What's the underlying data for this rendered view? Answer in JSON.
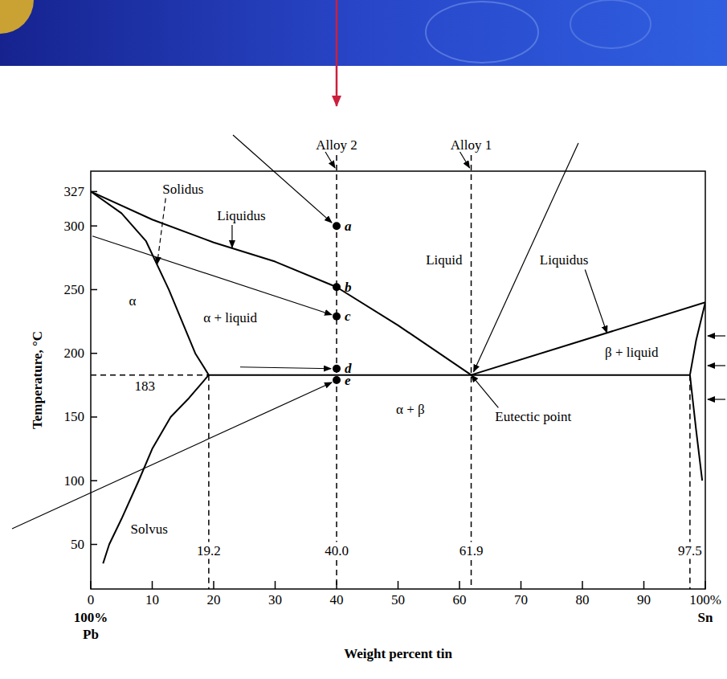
{
  "chart_data": {
    "type": "phase_diagram",
    "x_label": "Weight percent tin",
    "y_label": "Temperature, °C",
    "xlim": [
      0,
      100
    ],
    "ylim": [
      15,
      343
    ],
    "xticks": [
      0,
      10,
      20,
      30,
      40,
      50,
      60,
      70,
      80,
      90,
      {
        "value": 100,
        "label": "100%"
      }
    ],
    "yticks": [
      50,
      100,
      150,
      200,
      250,
      300,
      327
    ],
    "x_min_labels": [
      "100%",
      "Pb"
    ],
    "x_max_labels": [
      "Sn"
    ],
    "series": [
      {
        "x": [
          0,
          10,
          20,
          30,
          40,
          50,
          61.9
        ],
        "values": [
          327,
          305,
          287,
          272,
          252,
          222,
          183
        ],
        "color": "#000000",
        "line_style": "solid"
      },
      {
        "x": [
          0,
          5,
          9,
          12.7,
          17,
          19.2
        ],
        "values": [
          327,
          310,
          288,
          250,
          200,
          183
        ],
        "color": "#000000",
        "line_style": "solid"
      },
      {
        "x": [
          19.2,
          16,
          13,
          10,
          7.8,
          5,
          3,
          2
        ],
        "values": [
          183,
          165,
          150,
          125,
          100,
          70,
          50,
          35
        ],
        "color": "#000000",
        "line_style": "solid"
      },
      {
        "x": [
          61.9,
          100
        ],
        "values": [
          183,
          240
        ],
        "color": "#000000",
        "line_style": "solid"
      },
      {
        "x": [
          100,
          98.5,
          97.5
        ],
        "values": [
          240,
          210,
          183
        ],
        "color": "#000000",
        "line_style": "solid"
      },
      {
        "x": [
          97.5,
          98.5,
          99.5
        ],
        "values": [
          183,
          140,
          100
        ],
        "color": "#000000",
        "line_style": "solid"
      },
      {
        "x": [
          19.2,
          97.5
        ],
        "values": [
          183,
          183
        ],
        "color": "#000000",
        "line_style": "solid"
      },
      {
        "x": [
          0,
          19.2
        ],
        "values": [
          183,
          183
        ],
        "color": "#000000",
        "line_style": "dashed"
      }
    ],
    "reference_lines": [
      {
        "x": 19.2,
        "label": "19.2",
        "top": 183
      },
      {
        "x": 97.5,
        "label": "97.5",
        "top": 183
      }
    ],
    "alloys": [
      {
        "name": "Alloy 2",
        "x": 40,
        "label": "40.0",
        "points": [
          {
            "label": "a",
            "y": 300
          },
          {
            "label": "b",
            "y": 252
          },
          {
            "label": "c",
            "y": 229
          },
          {
            "label": "d",
            "y": 188
          },
          {
            "label": "e",
            "y": 179
          }
        ]
      },
      {
        "name": "Alloy 1",
        "x": 61.9,
        "label": "61.9"
      }
    ],
    "annotations": [
      {
        "text": "α",
        "x": 6.8,
        "y": 241
      },
      {
        "text": "α + liquid",
        "x": 22.7,
        "y": 228
      },
      {
        "text": "Liquid",
        "x": 57.5,
        "y": 273
      },
      {
        "text": "β + liquid",
        "x": 88,
        "y": 201
      },
      {
        "text": "α + β",
        "x": 52,
        "y": 156
      },
      {
        "text": "183",
        "x": 8.8,
        "y": 174
      },
      {
        "text": "Solvus",
        "x": 9.5,
        "y": 62
      },
      {
        "text": "Solidus",
        "x": 15,
        "y": 329,
        "target": [
          10.8,
          270
        ],
        "line_style": "dashed"
      },
      {
        "text": "Liquidus",
        "x": 24.5,
        "y": 308,
        "target": [
          23,
          283
        ]
      },
      {
        "text": "Liquidus",
        "x": 77,
        "y": 273,
        "target": [
          84,
          216
        ]
      },
      {
        "text": "Eutectic point",
        "x": 72,
        "y": 150,
        "target": [
          61.9,
          183
        ]
      }
    ]
  }
}
